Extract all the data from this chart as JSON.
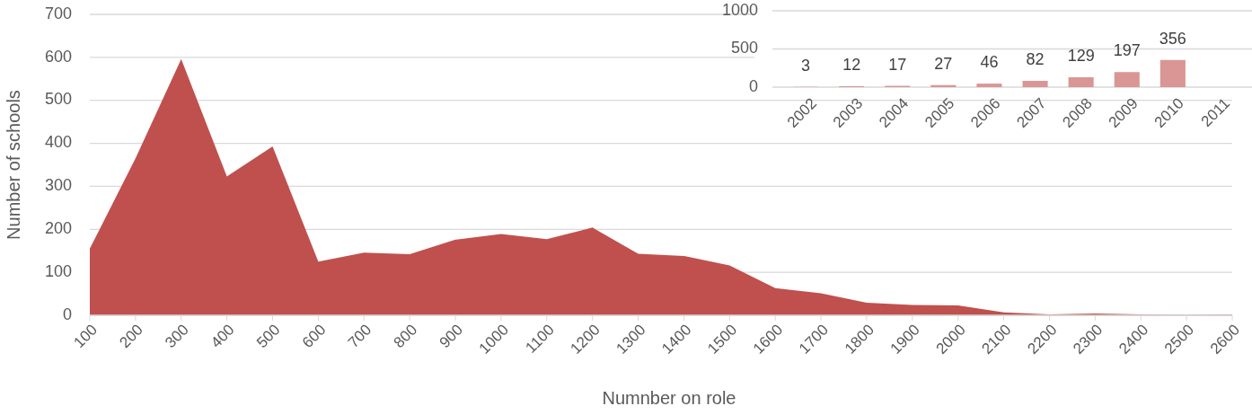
{
  "chart_data": [
    {
      "type": "area",
      "xlabel": "Numnber on role",
      "ylabel": "Number of schools",
      "x": [
        100,
        200,
        300,
        400,
        500,
        600,
        700,
        800,
        900,
        1000,
        1100,
        1200,
        1300,
        1400,
        1500,
        1600,
        1700,
        1800,
        1900,
        2000,
        2100,
        2200,
        2300,
        2400,
        2500,
        2600
      ],
      "values": [
        155,
        365,
        596,
        323,
        393,
        125,
        146,
        142,
        176,
        189,
        177,
        204,
        143,
        138,
        116,
        63,
        51,
        29,
        24,
        23,
        7,
        2,
        4,
        2,
        1,
        2
      ],
      "color": "#c0504d",
      "xlim": [
        100,
        2600
      ],
      "xticks": [
        100,
        200,
        300,
        400,
        500,
        600,
        700,
        800,
        900,
        1000,
        1100,
        1200,
        1300,
        1400,
        1500,
        1600,
        1700,
        1800,
        1900,
        2000,
        2100,
        2200,
        2300,
        2400,
        2500,
        2600
      ],
      "ylim": [
        0,
        700
      ],
      "yticks": [
        0,
        100,
        200,
        300,
        400,
        500,
        600,
        700
      ],
      "grid": "y"
    },
    {
      "type": "bar",
      "categories": [
        "2002",
        "2003",
        "2004",
        "2005",
        "2006",
        "2007",
        "2008",
        "2009",
        "2010",
        "2011"
      ],
      "values": [
        3,
        12,
        17,
        27,
        46,
        82,
        129,
        197,
        356,
        null
      ],
      "color": "#d99694",
      "data_labels": true,
      "ylim": [
        0,
        1000
      ],
      "yticks": [
        0,
        500,
        1000
      ],
      "grid": "y"
    }
  ]
}
